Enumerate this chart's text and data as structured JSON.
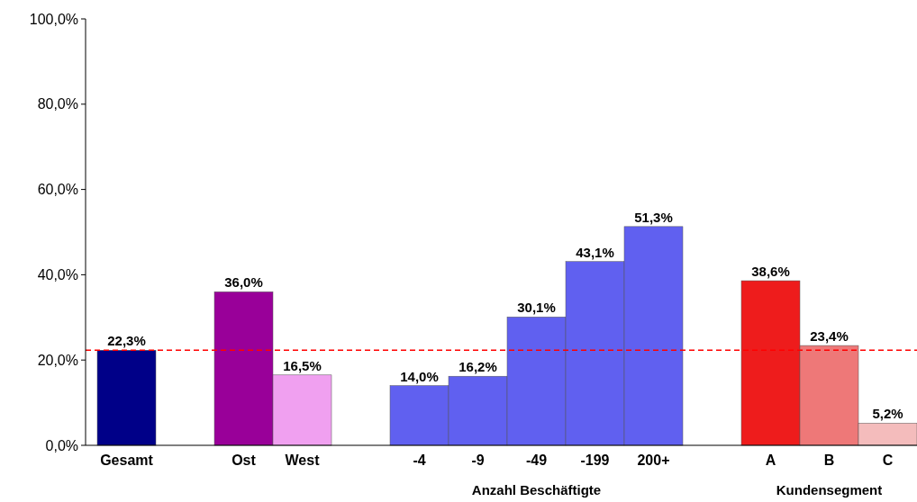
{
  "chart_data": {
    "type": "bar",
    "categories": [
      "Gesamt",
      null,
      "Ost",
      "West",
      null,
      "-4",
      "-9",
      "-49",
      "-199",
      "200+",
      null,
      "A",
      "B",
      "C"
    ],
    "values": [
      22.3,
      null,
      36.0,
      16.5,
      null,
      14.0,
      16.2,
      30.1,
      43.1,
      51.3,
      null,
      38.6,
      23.4,
      5.2
    ],
    "colors": [
      "#000088",
      null,
      "#990099",
      "#f0a0f0",
      null,
      "#6060f0",
      "#6060f0",
      "#6060f0",
      "#6060f0",
      "#6060f0",
      null,
      "#ee1c1c",
      "#ee7878",
      "#f4bcbc"
    ],
    "value_labels": [
      "22,3%",
      null,
      "36,0%",
      "16,5%",
      null,
      "14,0%",
      "16,2%",
      "30,1%",
      "43,1%",
      "51,3%",
      null,
      "38,6%",
      "23,4%",
      "5,2%"
    ],
    "ylim": [
      0,
      100
    ],
    "yticks": [
      {
        "value": 0,
        "label": "0,0%"
      },
      {
        "value": 20,
        "label": "20,0%"
      },
      {
        "value": 40,
        "label": "40,0%"
      },
      {
        "value": 60,
        "label": "60,0%"
      },
      {
        "value": 80,
        "label": "80,0%"
      },
      {
        "value": 100,
        "label": "100,0%"
      }
    ],
    "ref_lines": [
      {
        "axis": "y",
        "value": 22.3,
        "color": "#ff0000",
        "line_style": "dashed"
      }
    ],
    "annotations": [
      "Anzahl Beschäftigte",
      "Kundensegment"
    ],
    "grid": false
  }
}
